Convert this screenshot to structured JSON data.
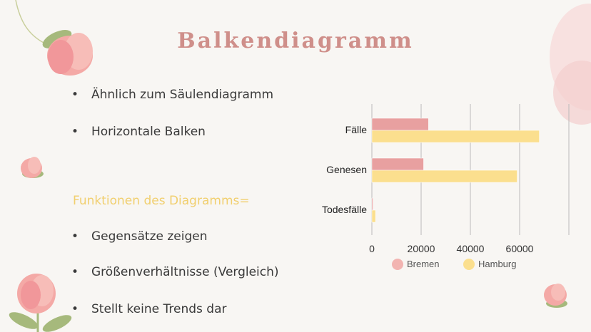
{
  "slide": {
    "title": "Balkendiagramm",
    "bullets_top": [
      "Ähnlich zum Säulendiagramm",
      "Horizontale Balken"
    ],
    "function_heading": "Funktionen des Diagramms=",
    "bullets_bottom": [
      "Gegensätze zeigen",
      "Größenverhältnisse (Vergleich)",
      "Stellt keine Trends dar"
    ]
  },
  "colors": {
    "title": "#cf8f8a",
    "heading_yellow": "#f1cf6e",
    "bremen": "#e8a0a0",
    "hamburg": "#fbdf8e",
    "flower": "#f4a9a6",
    "leaf": "#9fb27a"
  },
  "chart_data": {
    "type": "bar",
    "orientation": "horizontal",
    "categories": [
      "Fälle",
      "Genesen",
      "Todesfälle"
    ],
    "series": [
      {
        "name": "Bremen",
        "values": [
          23000,
          21000,
          300
        ],
        "color": "#e8a0a0"
      },
      {
        "name": "Hamburg",
        "values": [
          68000,
          59000,
          1500
        ],
        "color": "#fbdf8e"
      }
    ],
    "x_ticks": [
      "0",
      "20000",
      "40000",
      "60000"
    ],
    "xlim": [
      0,
      80000
    ],
    "grid": true,
    "legend_position": "bottom"
  }
}
